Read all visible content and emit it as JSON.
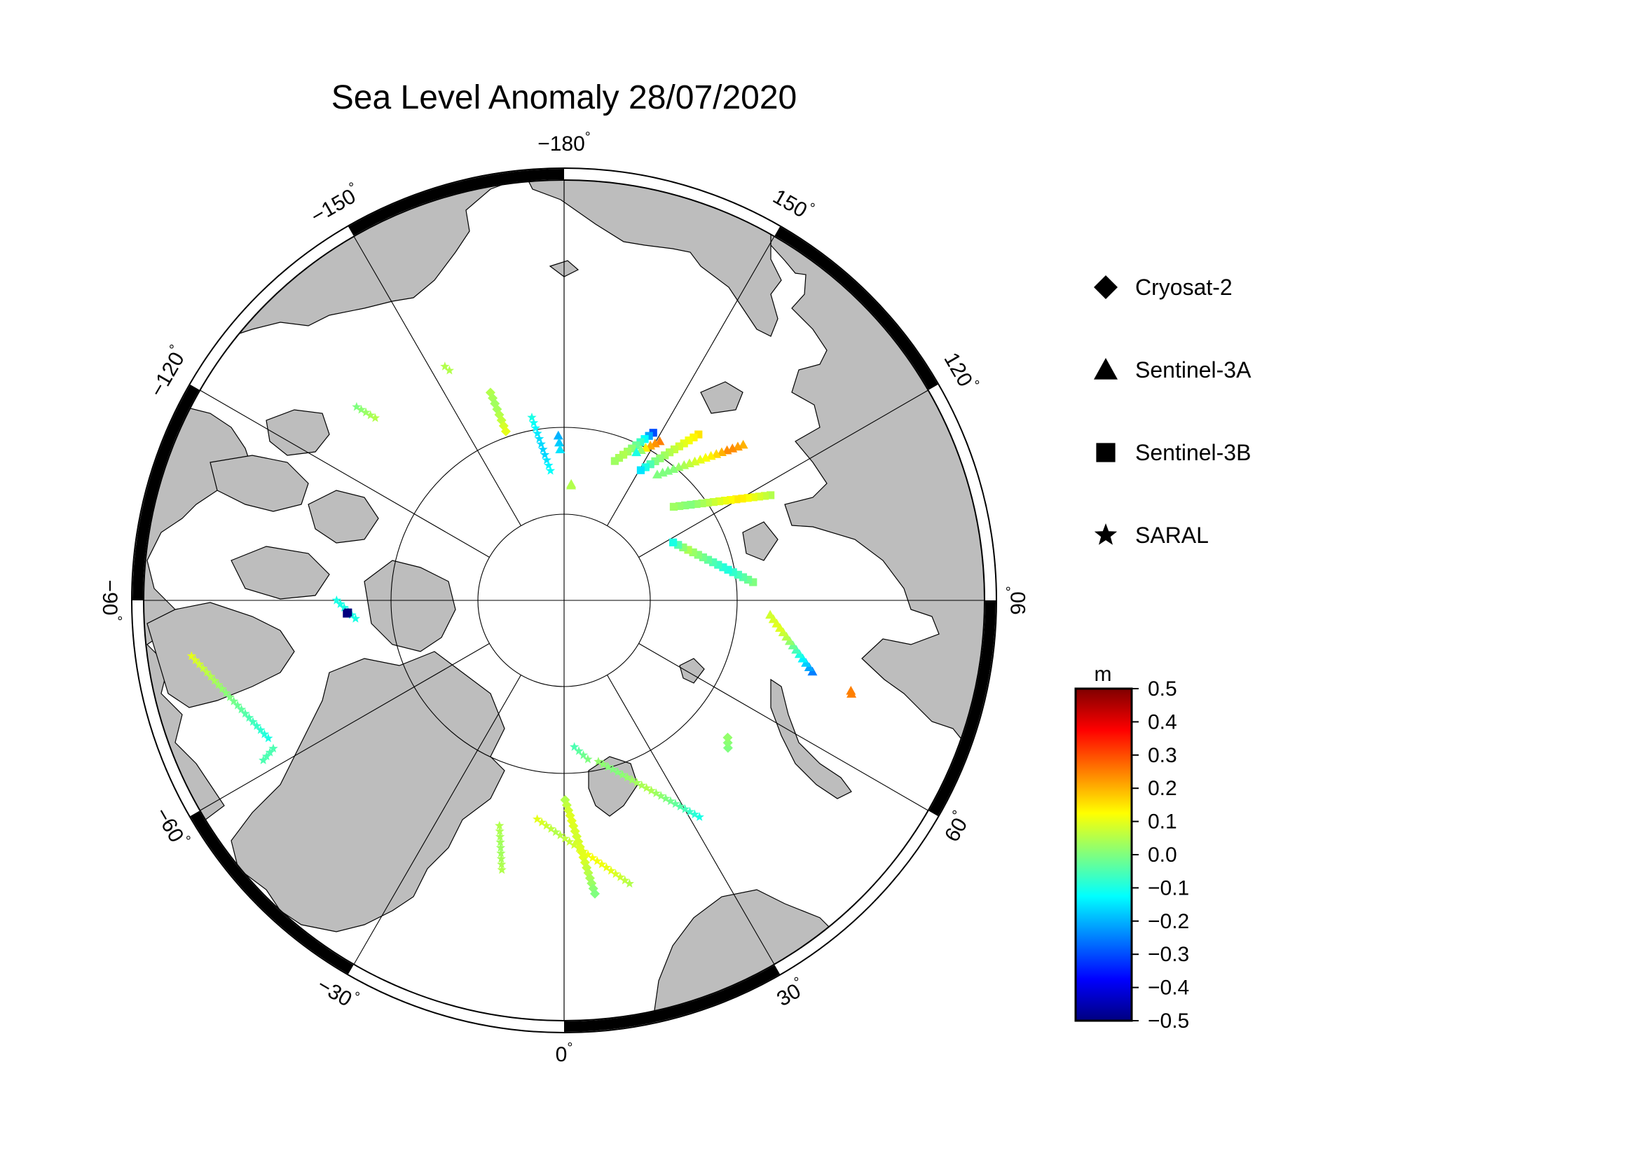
{
  "map": {
    "title": "Sea Level Anomaly 28/07/2020",
    "projection": "north-polar-stereographic",
    "colors": {
      "land": "#bdbdbd",
      "ocean": "#ffffff",
      "frame": "#000000"
    },
    "longitude_labels": [
      {
        "lon": -180,
        "text": "−180",
        "deg": "°"
      },
      {
        "lon": 150,
        "text": "150",
        "deg": "°"
      },
      {
        "lon": 120,
        "text": "120",
        "deg": "°"
      },
      {
        "lon": 90,
        "text": "90",
        "deg": "°"
      },
      {
        "lon": 60,
        "text": "60",
        "deg": "°"
      },
      {
        "lon": 30,
        "text": "30",
        "deg": "°"
      },
      {
        "lon": 0,
        "text": "0",
        "deg": "°"
      },
      {
        "lon": -30,
        "text": "−30",
        "deg": "°"
      },
      {
        "lon": -60,
        "text": "−60",
        "deg": "°"
      },
      {
        "lon": -90,
        "text": "−90",
        "deg": "°"
      },
      {
        "lon": -120,
        "text": "−120",
        "deg": "°"
      },
      {
        "lon": -150,
        "text": "−150",
        "deg": "°"
      }
    ]
  },
  "legend": {
    "items": [
      {
        "name": "Cryosat-2",
        "symbol": "diamond-icon"
      },
      {
        "name": "Sentinel-3A",
        "symbol": "triangle-icon"
      },
      {
        "name": "Sentinel-3B",
        "symbol": "square-icon"
      },
      {
        "name": "SARAL",
        "symbol": "star-icon"
      }
    ]
  },
  "colorbar": {
    "unit": "m",
    "min": -0.5,
    "max": 0.5,
    "ticks": [
      "0.5",
      "0.4",
      "0.3",
      "0.2",
      "0.1",
      "0.0",
      "−0.1",
      "−0.2",
      "−0.3",
      "−0.4",
      "−0.5"
    ],
    "stops": [
      "#00007f",
      "#0000ff",
      "#007fff",
      "#00ffff",
      "#7fff7f",
      "#ffff00",
      "#ff7f00",
      "#ff0000",
      "#7f0000"
    ]
  },
  "tracks": [
    {
      "satellite": "Cryosat-2",
      "from": [
        -160.5,
        74.0
      ],
      "to": [
        -161.0,
        77.0
      ],
      "values": [
        0.05,
        0.03,
        0.06,
        0.1
      ]
    },
    {
      "satellite": "SARAL",
      "from": [
        -170.0,
        76.5
      ],
      "to": [
        -174.0,
        80.5
      ],
      "values": [
        -0.1,
        -0.15,
        -0.17,
        -0.12
      ]
    },
    {
      "satellite": "Sentinel-3A",
      "from": [
        -178.0,
        78.0
      ],
      "to": [
        -178.5,
        79.0
      ],
      "values": [
        -0.2,
        -0.15
      ]
    },
    {
      "satellite": "Sentinel-3A",
      "from": [
        176.5,
        81.5
      ],
      "to": [
        176.5,
        81.6
      ],
      "values": [
        0.05
      ]
    },
    {
      "satellite": "Sentinel-3B",
      "from": [
        152.0,
        76.2
      ],
      "to": [
        160.0,
        79.2
      ],
      "values": [
        -0.3,
        -0.1,
        0.0,
        0.05,
        0.03
      ]
    },
    {
      "satellite": "Sentinel-3A",
      "from": [
        149.0,
        76.5
      ],
      "to": [
        154.0,
        78.0
      ],
      "values": [
        0.25,
        0.2,
        -0.1
      ]
    },
    {
      "satellite": "Sentinel-3B",
      "from": [
        141.0,
        74.5
      ],
      "to": [
        149.5,
        79.0
      ],
      "values": [
        0.15,
        0.1,
        0.05,
        0.0,
        -0.15
      ]
    },
    {
      "satellite": "Sentinel-3A",
      "from": [
        131.0,
        72.8
      ],
      "to": [
        143.5,
        78.6
      ],
      "values": [
        0.2,
        0.25,
        0.15,
        0.1,
        0.05,
        0.0,
        0.0
      ]
    },
    {
      "satellite": "Sentinel-3B",
      "from": [
        117.0,
        73.2
      ],
      "to": [
        130.5,
        79.5
      ],
      "values": [
        0.05,
        0.1,
        0.15,
        0.1,
        0.05,
        0.0,
        0.03
      ]
    },
    {
      "satellite": "Sentinel-3B",
      "from": [
        95.5,
        76.2
      ],
      "to": [
        118.0,
        81.0
      ],
      "values": [
        0.0,
        -0.05,
        -0.1,
        -0.05,
        0.0,
        0.05,
        -0.1
      ]
    },
    {
      "satellite": "Sentinel-3A",
      "from": [
        74.0,
        71.3
      ],
      "to": [
        86.0,
        75.0
      ],
      "values": [
        -0.25,
        -0.15,
        -0.05,
        0.05,
        0.1,
        0.08
      ]
    },
    {
      "satellite": "Sentinel-3A",
      "from": [
        72.0,
        68.2
      ],
      "to": [
        72.5,
        68.3
      ],
      "values": [
        0.25
      ]
    },
    {
      "satellite": "Cryosat-2",
      "from": [
        48.0,
        74.0
      ],
      "to": [
        50.0,
        74.5
      ],
      "values": [
        0.0,
        0.02
      ]
    },
    {
      "satellite": "SARAL",
      "from": [
        32.0,
        71.5
      ],
      "to": [
        12.0,
        78.0
      ],
      "values": [
        -0.1,
        -0.05,
        0.0,
        0.05,
        0.03,
        0.0,
        0.02
      ]
    },
    {
      "satellite": "SARAL",
      "from": [
        8.5,
        78.3
      ],
      "to": [
        4.0,
        79.3
      ],
      "values": [
        0.0,
        -0.05
      ]
    },
    {
      "satellite": "SARAL",
      "from": [
        13.0,
        69.0
      ],
      "to": [
        -7.0,
        74.0
      ],
      "values": [
        0.05,
        0.1,
        0.12,
        0.08,
        0.05,
        0.1
      ]
    },
    {
      "satellite": "Cryosat-2",
      "from": [
        0.3,
        75.5
      ],
      "to": [
        6.0,
        68.7
      ],
      "values": [
        0.05,
        0.1,
        0.08,
        0.1,
        0.05,
        0.0
      ]
    },
    {
      "satellite": "SARAL",
      "from": [
        -13.0,
        70.0
      ],
      "to": [
        -16.0,
        73.0
      ],
      "values": [
        0.05,
        0.03,
        0.05
      ]
    },
    {
      "satellite": "SARAL",
      "from": [
        -81.5,
        63.0
      ],
      "to": [
        -65.0,
        66.5
      ],
      "values": [
        0.1,
        0.05,
        0.0,
        -0.05,
        -0.1
      ]
    },
    {
      "satellite": "SARAL",
      "from": [
        -62.0,
        65.5
      ],
      "to": [
        -63.0,
        66.5
      ],
      "values": [
        -0.05
      ]
    },
    {
      "satellite": "SARAL",
      "from": [
        -90.0,
        73.5
      ],
      "to": [
        -85.0,
        74.8
      ],
      "values": [
        -0.1
      ]
    },
    {
      "satellite": "Sentinel-3B",
      "from": [
        -86.5,
        74.2
      ],
      "to": [
        -86.8,
        74.3
      ],
      "values": [
        -0.5
      ]
    },
    {
      "satellite": "SARAL",
      "from": [
        -133.0,
        69.5
      ],
      "to": [
        -134.0,
        71.0
      ],
      "values": [
        0.0,
        0.05
      ]
    },
    {
      "satellite": "SARAL",
      "from": [
        -153.0,
        71.0
      ],
      "to": [
        -153.5,
        71.4
      ],
      "values": [
        0.05
      ]
    }
  ]
}
